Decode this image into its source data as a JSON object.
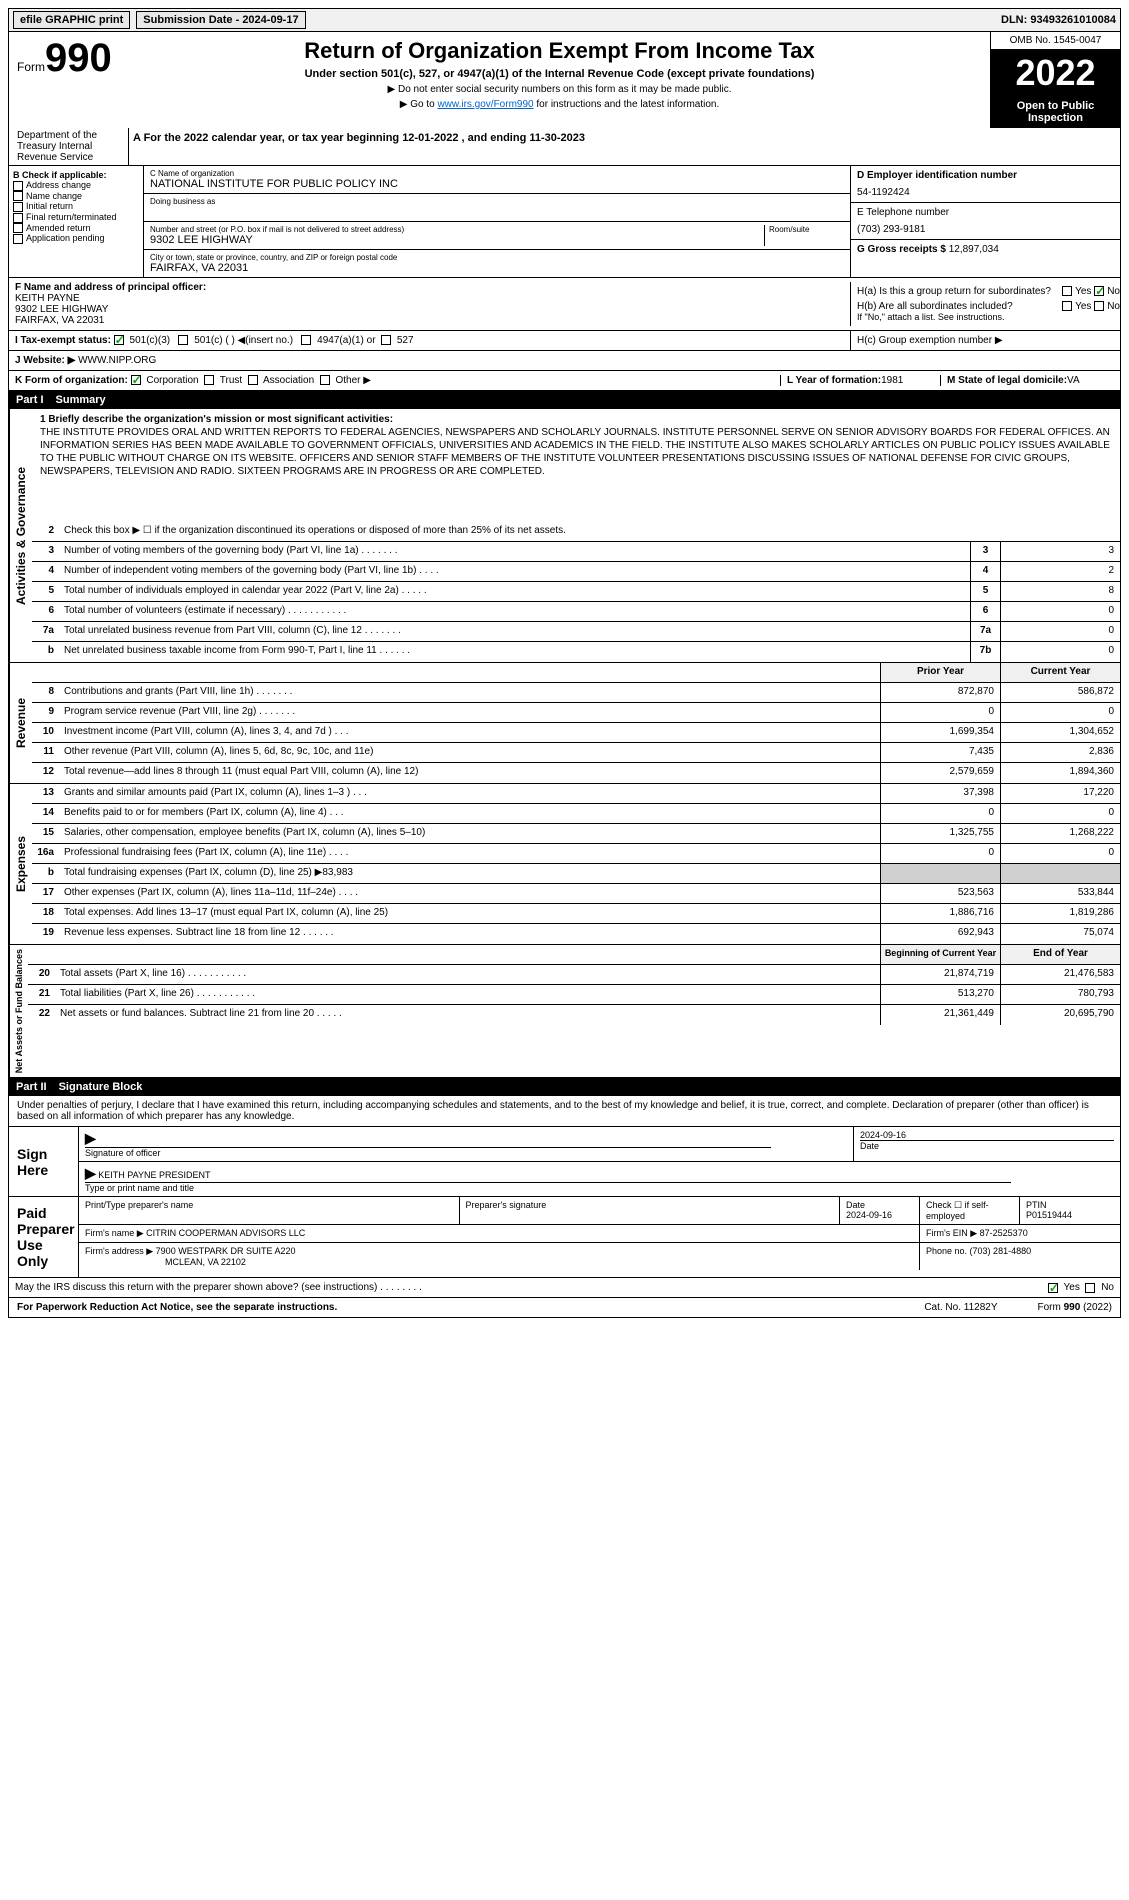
{
  "topbar": {
    "efile": "efile GRAPHIC print",
    "submission_label": "Submission Date - 2024-09-17",
    "dln": "DLN: 93493261010084"
  },
  "header": {
    "form_word": "Form",
    "form_num": "990",
    "title": "Return of Organization Exempt From Income Tax",
    "subtitle": "Under section 501(c), 527, or 4947(a)(1) of the Internal Revenue Code (except private foundations)",
    "note1": "▶ Do not enter social security numbers on this form as it may be made public.",
    "note2_pre": "▶ Go to ",
    "note2_link": "www.irs.gov/Form990",
    "note2_post": " for instructions and the latest information.",
    "omb": "OMB No. 1545-0047",
    "year": "2022",
    "open": "Open to Public Inspection",
    "dept": "Department of the Treasury Internal Revenue Service"
  },
  "period": {
    "text": "A For the 2022 calendar year, or tax year beginning 12-01-2022  , and ending 11-30-2023"
  },
  "b": {
    "label": "B Check if applicable:",
    "addr": "Address change",
    "name": "Name change",
    "initial": "Initial return",
    "final": "Final return/terminated",
    "amended": "Amended return",
    "app": "Application pending"
  },
  "c": {
    "name_label": "C Name of organization",
    "name": "NATIONAL INSTITUTE FOR PUBLIC POLICY INC",
    "dba_label": "Doing business as",
    "addr_label": "Number and street (or P.O. box if mail is not delivered to street address)",
    "room_label": "Room/suite",
    "addr": "9302 LEE HIGHWAY",
    "city_label": "City or town, state or province, country, and ZIP or foreign postal code",
    "city": "FAIRFAX, VA  22031"
  },
  "d": {
    "ein_label": "D Employer identification number",
    "ein": "54-1192424",
    "tel_label": "E Telephone number",
    "tel": "(703) 293-9181",
    "gross_label": "G Gross receipts $ ",
    "gross": "12,897,034"
  },
  "f": {
    "label": "F  Name and address of principal officer:",
    "name": "KEITH PAYNE",
    "addr1": "9302 LEE HIGHWAY",
    "addr2": "FAIRFAX, VA  22031"
  },
  "h": {
    "a_label": "H(a)  Is this a group return for subordinates?",
    "b_label": "H(b)  Are all subordinates included?",
    "b_note": "If \"No,\" attach a list. See instructions.",
    "c_label": "H(c)  Group exemption number ▶"
  },
  "i": {
    "label": "I  Tax-exempt status:",
    "c3": "501(c)(3)",
    "c": "501(c) (  ) ◀(insert no.)",
    "a1": "4947(a)(1) or",
    "527": "527"
  },
  "j": {
    "label": "J  Website: ▶",
    "val": "WWW.NIPP.ORG"
  },
  "k": {
    "label": "K Form of organization:",
    "corp": "Corporation",
    "trust": "Trust",
    "assoc": "Association",
    "other": "Other ▶"
  },
  "l": {
    "label": "L Year of formation: ",
    "val": "1981"
  },
  "m": {
    "label": "M State of legal domicile: ",
    "val": "VA"
  },
  "part1": {
    "num": "Part I",
    "title": "Summary"
  },
  "mission": {
    "label": "1   Briefly describe the organization's mission or most significant activities:",
    "text": "THE INSTITUTE PROVIDES ORAL AND WRITTEN REPORTS TO FEDERAL AGENCIES, NEWSPAPERS AND SCHOLARLY JOURNALS. INSTITUTE PERSONNEL SERVE ON SENIOR ADVISORY BOARDS FOR FEDERAL OFFICES. AN INFORMATION SERIES HAS BEEN MADE AVAILABLE TO GOVERNMENT OFFICIALS, UNIVERSITIES AND ACADEMICS IN THE FIELD. THE INSTITUTE ALSO MAKES SCHOLARLY ARTICLES ON PUBLIC POLICY ISSUES AVAILABLE TO THE PUBLIC WITHOUT CHARGE ON ITS WEBSITE. OFFICERS AND SENIOR STAFF MEMBERS OF THE INSTITUTE VOLUNTEER PRESENTATIONS DISCUSSING ISSUES OF NATIONAL DEFENSE FOR CIVIC GROUPS, NEWSPAPERS, TELEVISION AND RADIO. SIXTEEN PROGRAMS ARE IN PROGRESS OR ARE COMPLETED."
  },
  "gov_rows": [
    {
      "n": "2",
      "t": "Check this box ▶ ☐  if the organization discontinued its operations or disposed of more than 25% of its net assets.",
      "box": "",
      "val": ""
    },
    {
      "n": "3",
      "t": "Number of voting members of the governing body (Part VI, line 1a)   .    .    .    .    .    .    .",
      "box": "3",
      "val": "3"
    },
    {
      "n": "4",
      "t": "Number of independent voting members of the governing body (Part VI, line 1b)   .    .    .    .",
      "box": "4",
      "val": "2"
    },
    {
      "n": "5",
      "t": "Total number of individuals employed in calendar year 2022 (Part V, line 2a)   .    .    .    .    .",
      "box": "5",
      "val": "8"
    },
    {
      "n": "6",
      "t": "Total number of volunteers (estimate if necessary)   .    .    .    .    .    .    .    .    .    .    .",
      "box": "6",
      "val": "0"
    },
    {
      "n": "7a",
      "t": "Total unrelated business revenue from Part VIII, column (C), line 12   .    .    .    .    .    .    .",
      "box": "7a",
      "val": "0"
    },
    {
      "n": "b",
      "t": "Net unrelated business taxable income from Form 990-T, Part I, line 11   .    .    .    .    .    .",
      "box": "7b",
      "val": "0"
    }
  ],
  "col_headers": {
    "prior": "Prior Year",
    "current": "Current Year"
  },
  "rev_rows": [
    {
      "n": "8",
      "t": "Contributions and grants (Part VIII, line 1h)   .    .    .    .    .    .    .",
      "p": "872,870",
      "c": "586,872"
    },
    {
      "n": "9",
      "t": "Program service revenue (Part VIII, line 2g)   .    .    .    .    .    .    .",
      "p": "0",
      "c": "0"
    },
    {
      "n": "10",
      "t": "Investment income (Part VIII, column (A), lines 3, 4, and 7d )   .    .    .",
      "p": "1,699,354",
      "c": "1,304,652"
    },
    {
      "n": "11",
      "t": "Other revenue (Part VIII, column (A), lines 5, 6d, 8c, 9c, 10c, and 11e)",
      "p": "7,435",
      "c": "2,836"
    },
    {
      "n": "12",
      "t": "Total revenue—add lines 8 through 11 (must equal Part VIII, column (A), line 12)",
      "p": "2,579,659",
      "c": "1,894,360"
    }
  ],
  "exp_rows": [
    {
      "n": "13",
      "t": "Grants and similar amounts paid (Part IX, column (A), lines 1–3 )   .    .    .",
      "p": "37,398",
      "c": "17,220"
    },
    {
      "n": "14",
      "t": "Benefits paid to or for members (Part IX, column (A), line 4)   .    .    .",
      "p": "0",
      "c": "0"
    },
    {
      "n": "15",
      "t": "Salaries, other compensation, employee benefits (Part IX, column (A), lines 5–10)",
      "p": "1,325,755",
      "c": "1,268,222"
    },
    {
      "n": "16a",
      "t": "Professional fundraising fees (Part IX, column (A), line 11e)   .    .    .    .",
      "p": "0",
      "c": "0"
    },
    {
      "n": "b",
      "t": "Total fundraising expenses (Part IX, column (D), line 25) ▶83,983",
      "p": "",
      "c": "",
      "shaded": true
    },
    {
      "n": "17",
      "t": "Other expenses (Part IX, column (A), lines 11a–11d, 11f–24e)   .    .    .    .",
      "p": "523,563",
      "c": "533,844"
    },
    {
      "n": "18",
      "t": "Total expenses. Add lines 13–17 (must equal Part IX, column (A), line 25)",
      "p": "1,886,716",
      "c": "1,819,286"
    },
    {
      "n": "19",
      "t": "Revenue less expenses. Subtract line 18 from line 12   .    .    .    .    .    .",
      "p": "692,943",
      "c": "75,074"
    }
  ],
  "net_headers": {
    "begin": "Beginning of Current Year",
    "end": "End of Year"
  },
  "net_rows": [
    {
      "n": "20",
      "t": "Total assets (Part X, line 16)   .    .    .    .    .    .    .    .    .    .    .",
      "p": "21,874,719",
      "c": "21,476,583"
    },
    {
      "n": "21",
      "t": "Total liabilities (Part X, line 26)   .    .    .    .    .    .    .    .    .    .    .",
      "p": "513,270",
      "c": "780,793"
    },
    {
      "n": "22",
      "t": "Net assets or fund balances. Subtract line 21 from line 20   .    .    .    .    .",
      "p": "21,361,449",
      "c": "20,695,790"
    }
  ],
  "vert": {
    "gov": "Activities & Governance",
    "rev": "Revenue",
    "exp": "Expenses",
    "net": "Net Assets or Fund Balances"
  },
  "part2": {
    "num": "Part II",
    "title": "Signature Block"
  },
  "sig": {
    "penalty": "Under penalties of perjury, I declare that I have examined this return, including accompanying schedules and statements, and to the best of my knowledge and belief, it is true, correct, and complete. Declaration of preparer (other than officer) is based on all information of which preparer has any knowledge.",
    "here": "Sign Here",
    "officer_label": "Signature of officer",
    "date_label": "Date",
    "date": "2024-09-16",
    "name_label": "Type or print name and title",
    "name": "KEITH PAYNE  PRESIDENT",
    "paid": "Paid Preparer Use Only",
    "prep_name_label": "Print/Type preparer's name",
    "prep_sig_label": "Preparer's signature",
    "prep_date": "2024-09-16",
    "check_label": "Check ☐ if self-employed",
    "ptin_label": "PTIN",
    "ptin": "P01519444",
    "firm_name_label": "Firm's name     ▶",
    "firm_name": "CITRIN COOPERMAN ADVISORS LLC",
    "firm_ein_label": "Firm's EIN ▶",
    "firm_ein": "87-2525370",
    "firm_addr_label": "Firm's address ▶",
    "firm_addr": "7900 WESTPARK DR SUITE A220",
    "firm_city": "MCLEAN, VA  22102",
    "phone_label": "Phone no. ",
    "phone": "(703) 281-4880",
    "discuss": "May the IRS discuss this return with the preparer shown above? (see instructions)   .    .    .    .    .    .    .    .",
    "yes": "Yes",
    "no": "No"
  },
  "footer": {
    "pra": "For Paperwork Reduction Act Notice, see the separate instructions.",
    "cat": "Cat. No. 11282Y",
    "form": "Form 990 (2022)"
  }
}
